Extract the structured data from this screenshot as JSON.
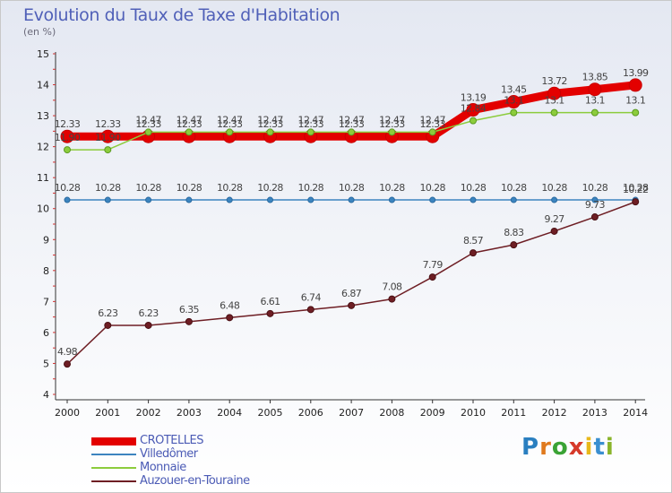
{
  "page": {
    "title": "Evolution du Taux de Taxe d'Habitation",
    "subtitle": "(en %)"
  },
  "logo": {
    "letters": [
      "P",
      "r",
      "o",
      "x",
      "i",
      "t",
      "i"
    ],
    "colors": [
      "#2a7fc0",
      "#e07a1e",
      "#3aa335",
      "#d63a2a",
      "#e8b81a",
      "#3a8fd0",
      "#8ab42a"
    ]
  },
  "chart_data": {
    "type": "line",
    "title": "Evolution du Taux de Taxe d'Habitation",
    "ylabel": "(en %)",
    "xlabel": "",
    "ylim": [
      4,
      15
    ],
    "yticks": [
      4,
      5,
      6,
      7,
      8,
      9,
      10,
      11,
      12,
      13,
      14,
      15
    ],
    "grid": false,
    "legend_position": "bottom-left",
    "x": [
      "2000",
      "2001",
      "2002",
      "2003",
      "2004",
      "2005",
      "2006",
      "2007",
      "2008",
      "2009",
      "2010",
      "2011",
      "2012",
      "2013",
      "2014"
    ],
    "series": [
      {
        "name": "CROTELLES",
        "color": "#e30000",
        "values": [
          12.33,
          12.33,
          12.33,
          12.33,
          12.33,
          12.33,
          12.33,
          12.33,
          12.33,
          12.33,
          13.19,
          13.45,
          13.72,
          13.85,
          13.99
        ],
        "labels": [
          "12.33",
          "12.33",
          "12.33",
          "12.33",
          "12.33",
          "12.33",
          "12.33",
          "12.33",
          "12.33",
          "12.33",
          "13.19",
          "13.45",
          "13.72",
          "13.85",
          "13.99"
        ]
      },
      {
        "name": "Villedômer",
        "color": "#3c84bf",
        "values": [
          10.28,
          10.28,
          10.28,
          10.28,
          10.28,
          10.28,
          10.28,
          10.28,
          10.28,
          10.28,
          10.28,
          10.28,
          10.28,
          10.28,
          10.28
        ],
        "labels": [
          "10.28",
          "10.28",
          "10.28",
          "10.28",
          "10.28",
          "10.28",
          "10.28",
          "10.28",
          "10.28",
          "10.28",
          "10.28",
          "10.28",
          "10.28",
          "10.28",
          "10.28"
        ]
      },
      {
        "name": "Monnaie",
        "color": "#8ccc3c",
        "values": [
          11.9,
          11.9,
          12.47,
          12.47,
          12.47,
          12.47,
          12.47,
          12.47,
          12.47,
          12.47,
          12.84,
          13.1,
          13.1,
          13.1,
          13.1
        ],
        "labels": [
          "11.90",
          "11.90",
          "12.47",
          "12.47",
          "12.47",
          "12.47",
          "12.47",
          "12.47",
          "12.47",
          "12.47",
          "12.84",
          "13.1",
          "13.1",
          "13.1",
          "13.1"
        ]
      },
      {
        "name": "Auzouer-en-Touraine",
        "color": "#6e1e24",
        "values": [
          4.98,
          6.23,
          6.23,
          6.35,
          6.48,
          6.61,
          6.74,
          6.87,
          7.08,
          7.79,
          8.57,
          8.83,
          9.27,
          9.73,
          10.22
        ],
        "labels": [
          "4.98",
          "6.23",
          "6.23",
          "6.35",
          "6.48",
          "6.61",
          "6.74",
          "6.87",
          "7.08",
          "7.79",
          "8.57",
          "8.83",
          "9.27",
          "9.73",
          "10.22"
        ]
      }
    ]
  }
}
